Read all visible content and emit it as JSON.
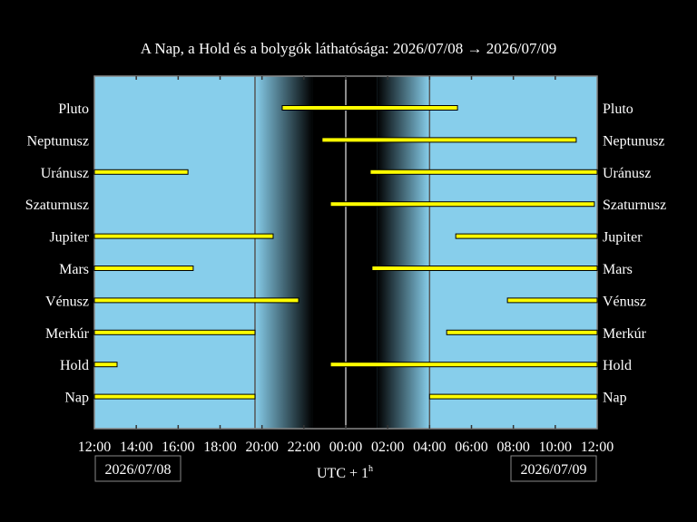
{
  "chart_data": {
    "type": "timeline",
    "title": "A Nap, a Hold és a bolygók láthatósága: 2026/07/08 → 2026/07/09",
    "xlabel": "UTC + 1",
    "xlabel_sup": "h",
    "date_start": "2026/07/08",
    "date_end": "2026/07/09",
    "x_ticks": [
      "12:00",
      "14:00",
      "16:00",
      "18:00",
      "20:00",
      "22:00",
      "00:00",
      "02:00",
      "04:00",
      "06:00",
      "08:00",
      "10:00",
      "12:00"
    ],
    "sunset": "19:40",
    "sunrise": "04:00",
    "midnight": "00:00",
    "colors": {
      "day": "#87ceeb",
      "night": "#000000",
      "bar": "#ffff00",
      "bar_outline": "#000000"
    },
    "rows": [
      {
        "name": "Pluto",
        "intervals": [
          [
            "20:58",
            "05:20"
          ]
        ]
      },
      {
        "name": "Neptunusz",
        "intervals": [
          [
            "22:52",
            "11:00"
          ]
        ]
      },
      {
        "name": "Uránusz",
        "intervals": [
          [
            "12:00",
            "16:28"
          ],
          [
            "01:10",
            "12:00"
          ]
        ]
      },
      {
        "name": "Szaturnusz",
        "intervals": [
          [
            "23:16",
            "11:52"
          ]
        ]
      },
      {
        "name": "Jupiter",
        "intervals": [
          [
            "12:00",
            "20:32"
          ],
          [
            "05:15",
            "12:00"
          ]
        ]
      },
      {
        "name": "Mars",
        "intervals": [
          [
            "12:00",
            "16:43"
          ],
          [
            "01:15",
            "12:00"
          ]
        ]
      },
      {
        "name": "Vénusz",
        "intervals": [
          [
            "12:00",
            "21:45"
          ],
          [
            "07:43",
            "12:00"
          ]
        ]
      },
      {
        "name": "Merkúr",
        "intervals": [
          [
            "12:00",
            "19:40"
          ],
          [
            "04:49",
            "12:00"
          ]
        ]
      },
      {
        "name": "Hold",
        "intervals": [
          [
            "12:00",
            "13:05"
          ],
          [
            "23:16",
            "12:00"
          ]
        ]
      },
      {
        "name": "Nap",
        "intervals": [
          [
            "12:00",
            "19:40"
          ],
          [
            "04:00",
            "12:00"
          ]
        ]
      }
    ]
  }
}
